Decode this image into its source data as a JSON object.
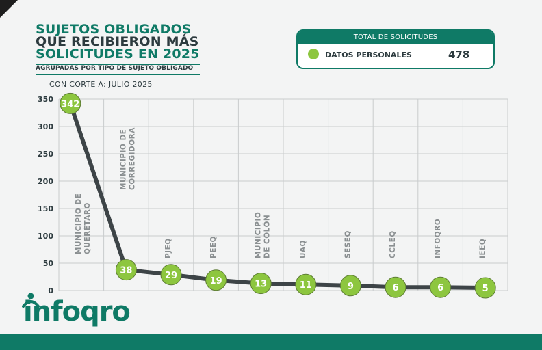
{
  "header": {
    "title_line1": "SUJETOS OBLIGADOS",
    "title_line2": "QUE RECIBIERON MÁS",
    "title_line3": "SOLICITUDES EN 2025",
    "subtitle": "AGRUPADAS POR TIPO DE SUJETO OBLIGADO",
    "cutoff": "CON CORTE A: JULIO 2025"
  },
  "total": {
    "heading": "TOTAL DE SOLICITUDES",
    "label": "DATOS PERSONALES",
    "value": "478"
  },
  "logo": {
    "text": "infoqro"
  },
  "colors": {
    "brand": "#0f7a66",
    "accent": "#8dc63f",
    "line": "#3d4447",
    "text": "#2d3b3f"
  },
  "chart_data": {
    "type": "line",
    "categories": [
      [
        "MUNICIPIO DE",
        "QUERÉTARO"
      ],
      [
        "MUNICIPIO DE",
        "CORREGIDORA"
      ],
      [
        "PJEQ"
      ],
      [
        "PEEQ"
      ],
      [
        "MUNICIPIO",
        "DE COLÓN"
      ],
      [
        "UAQ"
      ],
      [
        "SESEQ"
      ],
      [
        "CCLEQ"
      ],
      [
        "INFOQRO"
      ],
      [
        "IEEQ"
      ]
    ],
    "values": [
      342,
      38,
      29,
      19,
      13,
      11,
      9,
      6,
      6,
      5
    ],
    "ylim": [
      0,
      350
    ],
    "yticks": [
      0,
      50,
      100,
      150,
      200,
      250,
      300,
      350
    ],
    "grid": true
  }
}
